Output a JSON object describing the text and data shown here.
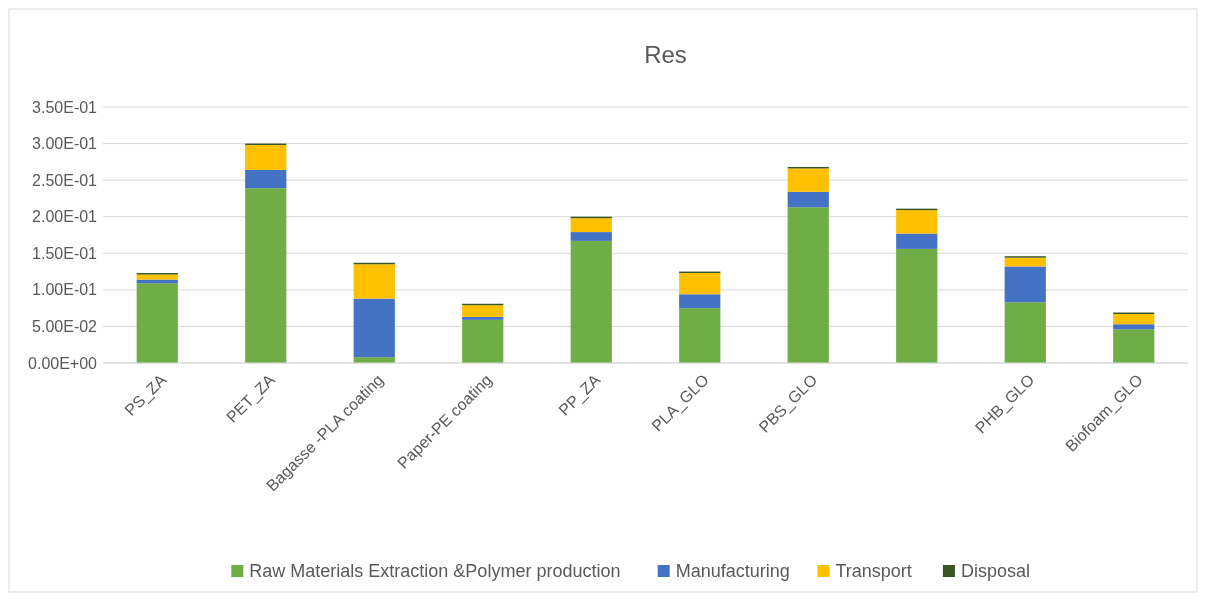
{
  "chart_data": {
    "type": "bar",
    "title": "Res",
    "stacked": true,
    "grid": "y",
    "legend": "bottom",
    "categories": [
      "PS_ZA",
      "PET_ZA",
      "Bagasse -PLA coating",
      "Paper-PE coating",
      "PP_ZA",
      "PLA_GLO",
      "PBS_GLO",
      null,
      "PHB_GLO",
      "Biofoam_GLO"
    ],
    "series": [
      {
        "name": "Raw Materials Extraction &Polymer production",
        "color": "#70ad47",
        "values": [
          0.109,
          0.239,
          0.008,
          0.059,
          0.167,
          0.075,
          0.213,
          0.156,
          0.083,
          0.046
        ]
      },
      {
        "name": "Manufacturing",
        "color": "#4472c4",
        "values": [
          0.005,
          0.025,
          0.08,
          0.004,
          0.012,
          0.019,
          0.021,
          0.021,
          0.049,
          0.007
        ]
      },
      {
        "name": "Transport",
        "color": "#ffc000",
        "values": [
          0.007,
          0.034,
          0.047,
          0.016,
          0.019,
          0.029,
          0.032,
          0.032,
          0.012,
          0.014
        ]
      },
      {
        "name": "Disposal",
        "color": "#375623",
        "values": [
          0.002,
          0.002,
          0.002,
          0.002,
          0.002,
          0.002,
          0.002,
          0.002,
          0.002,
          0.002
        ]
      }
    ],
    "ylim": [
      0,
      0.35
    ],
    "yticks": [
      {
        "value": 0,
        "label": "0.00E+00"
      },
      {
        "value": 0.05,
        "label": "5.00E-02"
      },
      {
        "value": 0.1,
        "label": "1.00E-01"
      },
      {
        "value": 0.15,
        "label": "1.50E-01"
      },
      {
        "value": 0.2,
        "label": "2.00E-01"
      },
      {
        "value": 0.25,
        "label": "2.50E-01"
      },
      {
        "value": 0.3,
        "label": "3.00E-01"
      },
      {
        "value": 0.35,
        "label": "3.50E-01"
      }
    ]
  }
}
